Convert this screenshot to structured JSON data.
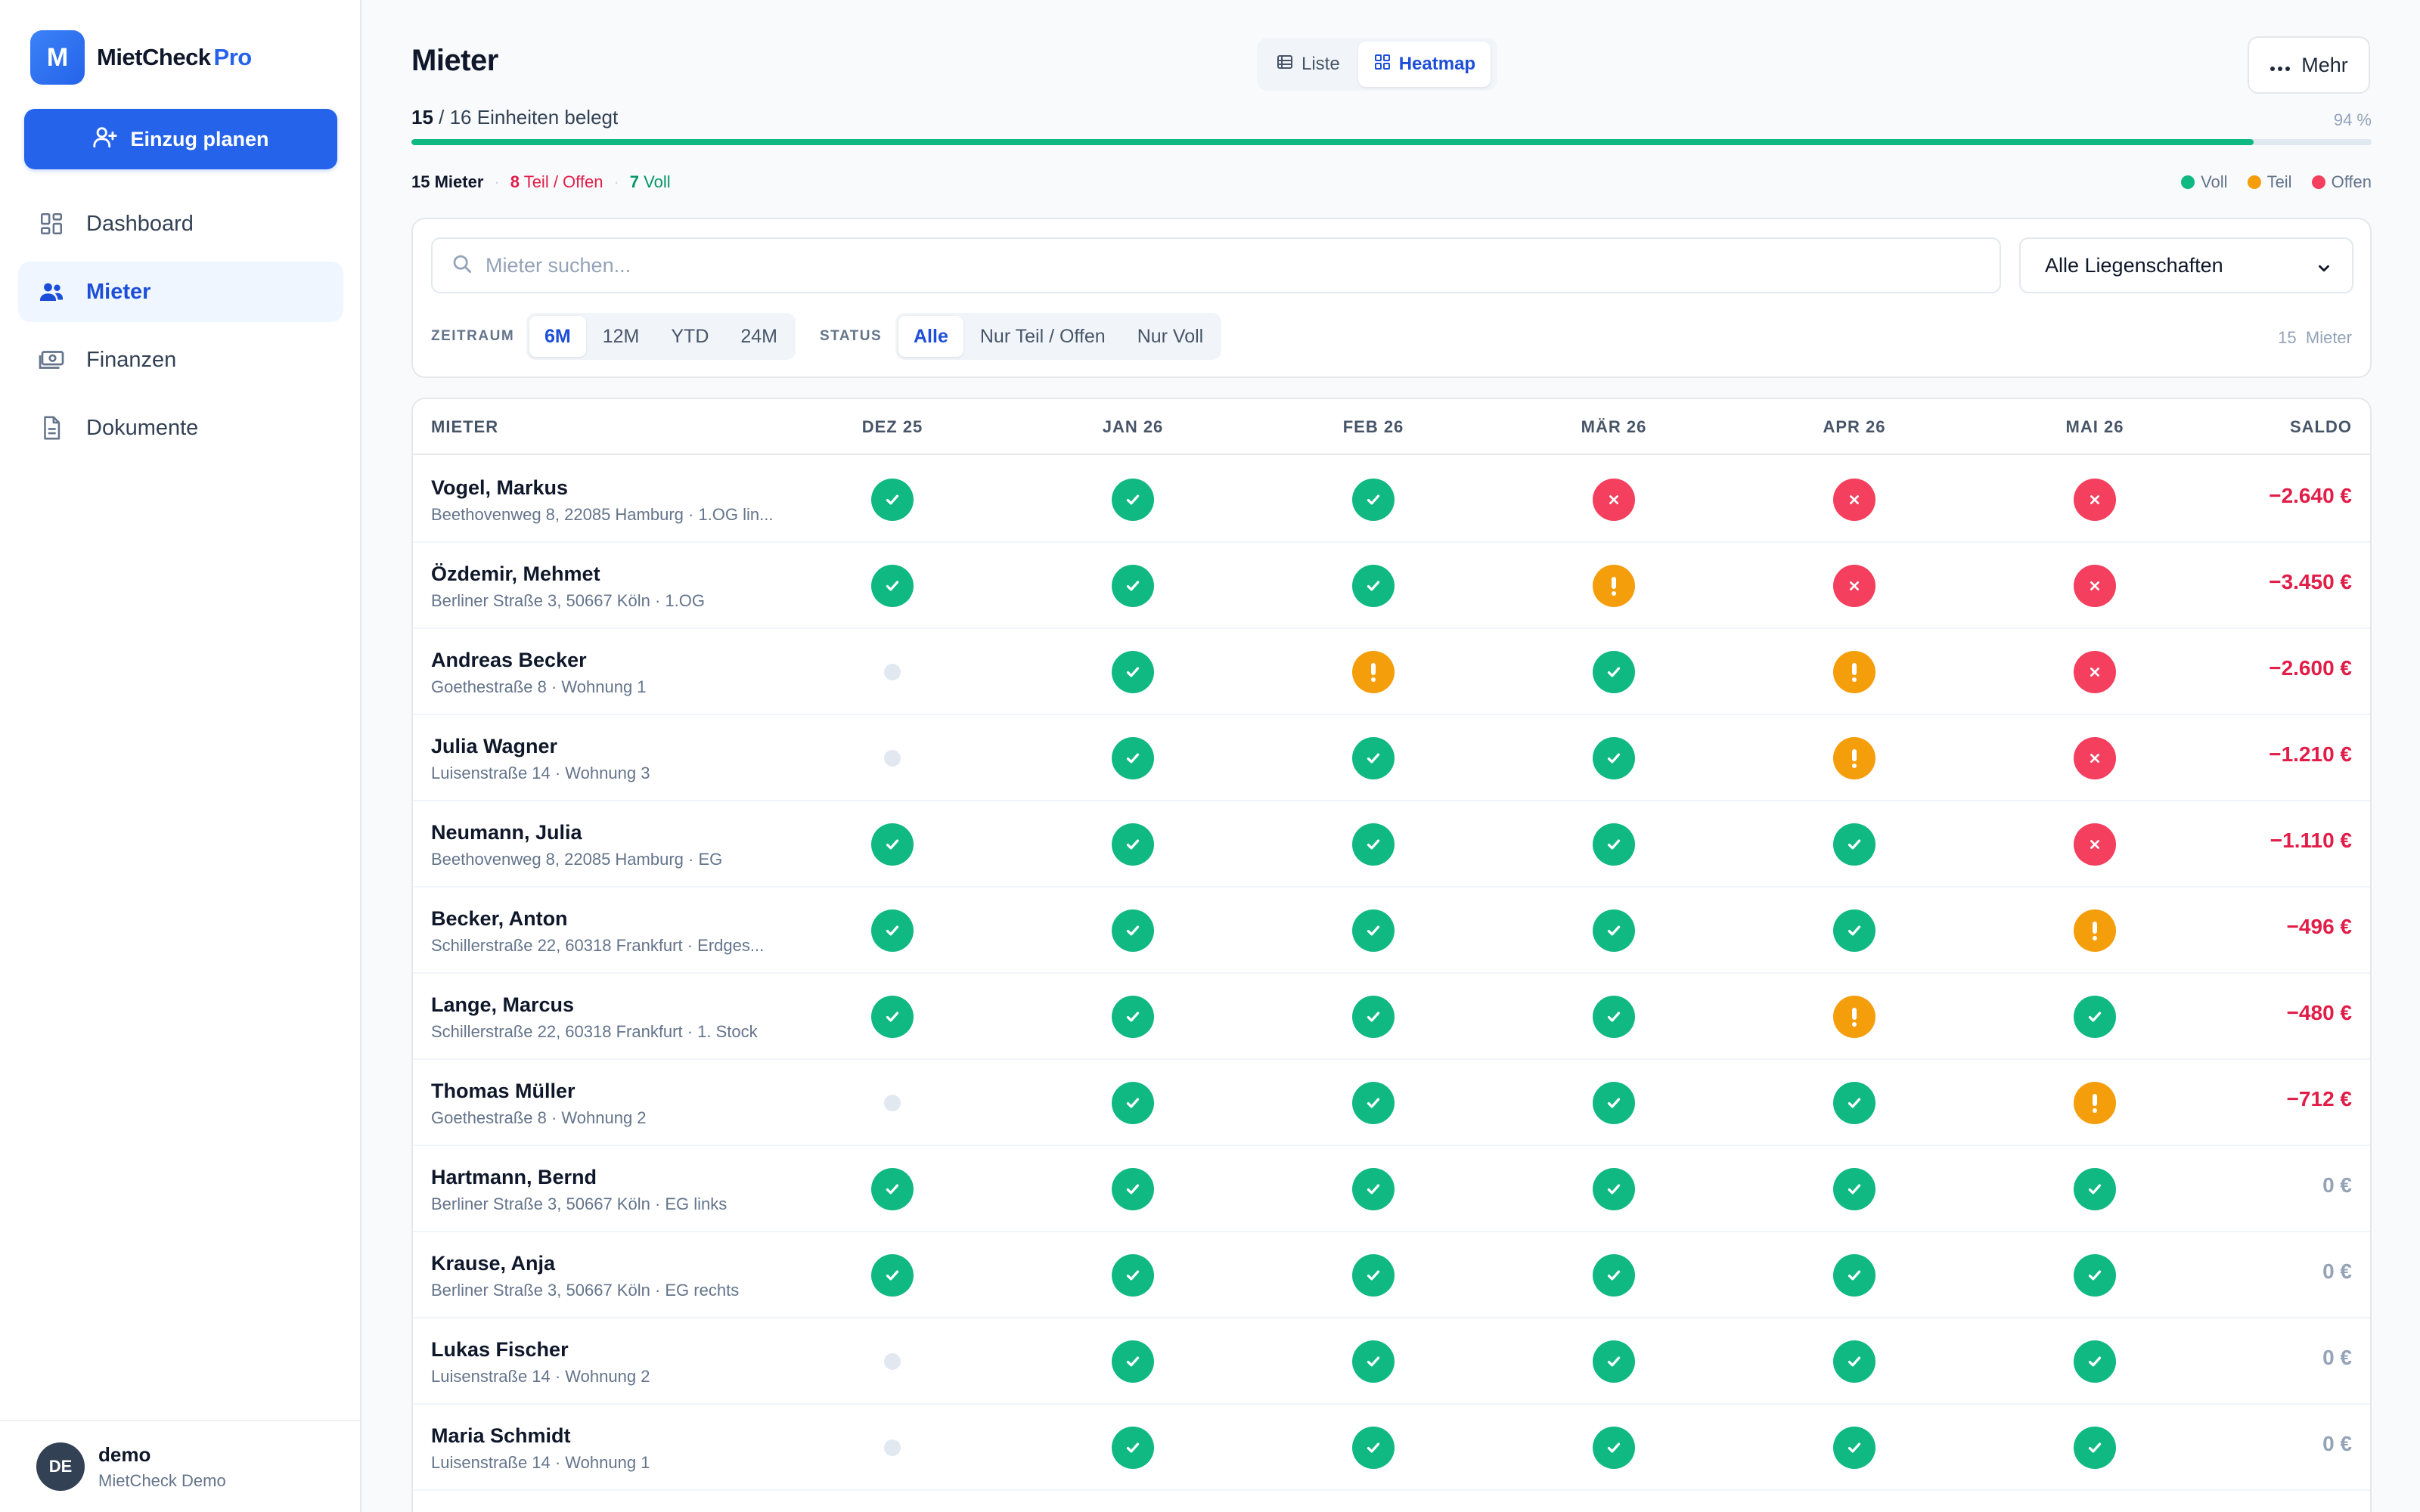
{
  "brand": {
    "logo_letter": "M",
    "name": "MietCheck",
    "suffix": "Pro"
  },
  "sidebar": {
    "cta_label": "Einzug planen",
    "items": [
      {
        "label": "Dashboard",
        "icon": "dashboard-icon",
        "active": false
      },
      {
        "label": "Mieter",
        "icon": "users-icon",
        "active": true
      },
      {
        "label": "Finanzen",
        "icon": "money-icon",
        "active": false
      },
      {
        "label": "Dokumente",
        "icon": "document-icon",
        "active": false
      }
    ],
    "user": {
      "initials": "DE",
      "name": "demo",
      "subtitle": "MietCheck Demo"
    }
  },
  "header": {
    "title": "Mieter",
    "views": [
      {
        "label": "Liste",
        "active": false
      },
      {
        "label": "Heatmap",
        "active": true
      }
    ],
    "more_label": "Mehr"
  },
  "occupancy": {
    "occupied": "15",
    "text": " / 16 Einheiten belegt",
    "percent_label": "94 %",
    "fraction": 0.94
  },
  "summary": {
    "tenants_count": "15",
    "tenants_label": " Mieter",
    "partial_count": "8",
    "partial_label": " Teil / Offen",
    "full_count": "7",
    "full_label": " Voll"
  },
  "legend": [
    {
      "label": "Voll",
      "color": "#10b981"
    },
    {
      "label": "Teil",
      "color": "#f59e0b"
    },
    {
      "label": "Offen",
      "color": "#f43f5e"
    }
  ],
  "filters": {
    "search_placeholder": "Mieter suchen...",
    "property_select": "Alle Liegenschaften",
    "period_label": "ZEITRAUM",
    "periods": [
      {
        "label": "6M",
        "active": true
      },
      {
        "label": "12M",
        "active": false
      },
      {
        "label": "YTD",
        "active": false
      },
      {
        "label": "24M",
        "active": false
      }
    ],
    "status_label": "STATUS",
    "statuses": [
      {
        "label": "Alle",
        "active": true
      },
      {
        "label": "Nur Teil / Offen",
        "active": false
      },
      {
        "label": "Nur Voll",
        "active": false
      }
    ],
    "result_count": "15",
    "result_label": "Mieter"
  },
  "table": {
    "col_tenant": "MIETER",
    "months": [
      "DEZ 25",
      "JAN 26",
      "FEB 26",
      "MÄR 26",
      "APR 26",
      "MAI 26"
    ],
    "col_balance": "SALDO",
    "rows": [
      {
        "name": "Vogel, Markus",
        "address": "Beethovenweg 8, 22085 Hamburg · 1.OG lin...",
        "status": [
          "voll",
          "voll",
          "voll",
          "offen",
          "offen",
          "offen"
        ],
        "balance": "−2.640 €"
      },
      {
        "name": "Özdemir, Mehmet",
        "address": "Berliner Straße 3, 50667 Köln · 1.OG",
        "status": [
          "voll",
          "voll",
          "voll",
          "teil",
          "offen",
          "offen"
        ],
        "balance": "−3.450 €"
      },
      {
        "name": "Andreas Becker",
        "address": "Goethestraße 8 · Wohnung 1",
        "status": [
          "leer",
          "voll",
          "teil",
          "voll",
          "teil",
          "offen"
        ],
        "balance": "−2.600 €"
      },
      {
        "name": "Julia Wagner",
        "address": "Luisenstraße 14 · Wohnung 3",
        "status": [
          "leer",
          "voll",
          "voll",
          "voll",
          "teil",
          "offen"
        ],
        "balance": "−1.210 €"
      },
      {
        "name": "Neumann, Julia",
        "address": "Beethovenweg 8, 22085 Hamburg · EG",
        "status": [
          "voll",
          "voll",
          "voll",
          "voll",
          "voll",
          "offen"
        ],
        "balance": "−1.110 €"
      },
      {
        "name": "Becker, Anton",
        "address": "Schillerstraße 22, 60318 Frankfurt · Erdges...",
        "status": [
          "voll",
          "voll",
          "voll",
          "voll",
          "voll",
          "teil"
        ],
        "balance": "−496 €"
      },
      {
        "name": "Lange, Marcus",
        "address": "Schillerstraße 22, 60318 Frankfurt · 1. Stock",
        "status": [
          "voll",
          "voll",
          "voll",
          "voll",
          "teil",
          "voll"
        ],
        "balance": "−480 €"
      },
      {
        "name": "Thomas Müller",
        "address": "Goethestraße 8 · Wohnung 2",
        "status": [
          "leer",
          "voll",
          "voll",
          "voll",
          "voll",
          "teil"
        ],
        "balance": "−712 €"
      },
      {
        "name": "Hartmann, Bernd",
        "address": "Berliner Straße 3, 50667 Köln · EG links",
        "status": [
          "voll",
          "voll",
          "voll",
          "voll",
          "voll",
          "voll"
        ],
        "balance": "0 €"
      },
      {
        "name": "Krause, Anja",
        "address": "Berliner Straße 3, 50667 Köln · EG rechts",
        "status": [
          "voll",
          "voll",
          "voll",
          "voll",
          "voll",
          "voll"
        ],
        "balance": "0 €"
      },
      {
        "name": "Lukas Fischer",
        "address": "Luisenstraße 14 · Wohnung 2",
        "status": [
          "leer",
          "voll",
          "voll",
          "voll",
          "voll",
          "voll"
        ],
        "balance": "0 €"
      },
      {
        "name": "Maria Schmidt",
        "address": "Luisenstraße 14 · Wohnung 1",
        "status": [
          "leer",
          "voll",
          "voll",
          "voll",
          "voll",
          "voll"
        ],
        "balance": "0 €"
      }
    ]
  }
}
